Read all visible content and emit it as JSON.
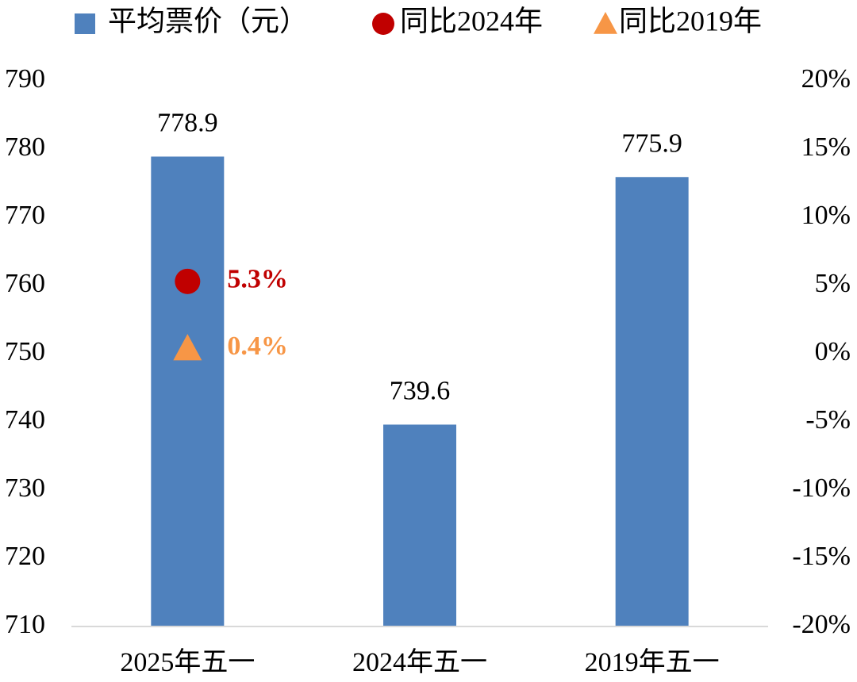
{
  "chart_data": {
    "type": "bar",
    "categories": [
      "2025年五一",
      "2024年五一",
      "2019年五一"
    ],
    "series": [
      {
        "name": "平均票价（元）",
        "kind": "bar",
        "axis": "left",
        "color": "#4F81BD",
        "values": [
          778.9,
          739.6,
          775.9
        ],
        "labels": [
          "778.9",
          "739.6",
          "775.9"
        ]
      },
      {
        "name": "同比2024年",
        "kind": "marker",
        "marker": "circle",
        "axis": "right",
        "color": "#C00000",
        "values": [
          5.3,
          null,
          null
        ],
        "labels": [
          "5.3%",
          "",
          ""
        ]
      },
      {
        "name": "同比2019年",
        "kind": "marker",
        "marker": "triangle",
        "axis": "right",
        "color": "#F79646",
        "values": [
          0.4,
          null,
          null
        ],
        "labels": [
          "0.4%",
          "",
          ""
        ]
      }
    ],
    "y_left": {
      "ylim": [
        710,
        790
      ],
      "ticks": [
        "710",
        "720",
        "730",
        "740",
        "750",
        "760",
        "770",
        "780",
        "790"
      ]
    },
    "y_right": {
      "ylim": [
        -20,
        20
      ],
      "ticks": [
        "-20%",
        "-15%",
        "-10%",
        "-5%",
        "0%",
        "5%",
        "10%",
        "15%",
        "20%"
      ]
    },
    "legend_position": "top",
    "grid": false
  }
}
